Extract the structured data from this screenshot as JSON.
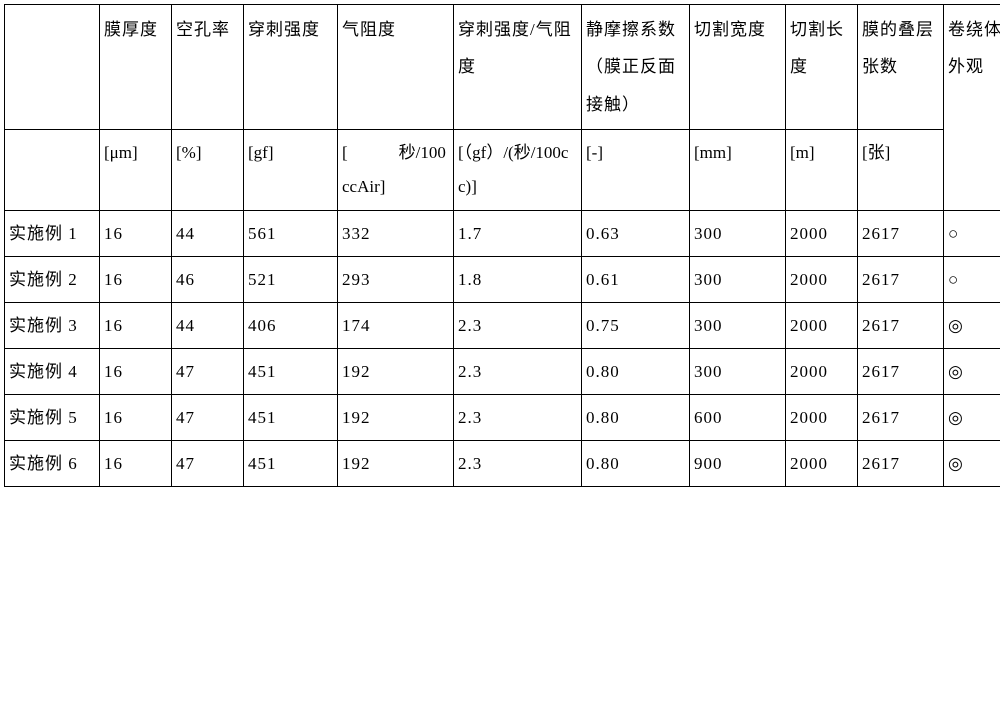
{
  "columns": [
    {
      "header": "",
      "unit": ""
    },
    {
      "header": "膜厚度",
      "unit": "[μm]"
    },
    {
      "header": "空孔率",
      "unit": "[%]"
    },
    {
      "header": "穿刺强度",
      "unit": "[gf]",
      "spaced": true
    },
    {
      "header": "气阻度",
      "unit": "[　　　秒/100ccAir]"
    },
    {
      "header": "穿刺强度/气阻度",
      "unit": "[（gf）/(秒/100cc)]"
    },
    {
      "header": "静摩擦系数（膜正反面接触）",
      "unit": "[-]"
    },
    {
      "header": "切割宽度",
      "unit": "[mm]",
      "spaced": true
    },
    {
      "header": "切割长度",
      "unit": "[m]"
    },
    {
      "header": "膜的叠层张数",
      "unit": "[张]"
    },
    {
      "header": "卷绕体外观",
      "unit": "",
      "spaced": true
    }
  ],
  "rows": [
    {
      "label": "实施例 1",
      "values": [
        "16",
        "44",
        "561",
        "332",
        "1.7",
        "0.63",
        "300",
        "2000",
        "2617",
        "○"
      ]
    },
    {
      "label": "实施例 2",
      "values": [
        "16",
        "46",
        "521",
        "293",
        "1.8",
        "0.61",
        "300",
        "2000",
        "2617",
        "○"
      ]
    },
    {
      "label": "实施例 3",
      "values": [
        "16",
        "44",
        "406",
        "174",
        "2.3",
        "0.75",
        "300",
        "2000",
        "2617",
        "◎"
      ]
    },
    {
      "label": "实施例 4",
      "values": [
        "16",
        "47",
        "451",
        "192",
        "2.3",
        "0.80",
        "300",
        "2000",
        "2617",
        "◎"
      ]
    },
    {
      "label": "实施例 5",
      "values": [
        "16",
        "47",
        "451",
        "192",
        "2.3",
        "0.80",
        "600",
        "2000",
        "2617",
        "◎"
      ]
    },
    {
      "label": "实施例 6",
      "values": [
        "16",
        "47",
        "451",
        "192",
        "2.3",
        "0.80",
        "900",
        "2000",
        "2617",
        "◎"
      ]
    }
  ],
  "style": {
    "background_color": "#ffffff",
    "border_color": "#000000",
    "text_color": "#000000",
    "font_family": "SimSun",
    "header_fontsize": 17,
    "cell_fontsize": 17,
    "header_line_height": 2.2,
    "data_line_height": 1.0
  }
}
